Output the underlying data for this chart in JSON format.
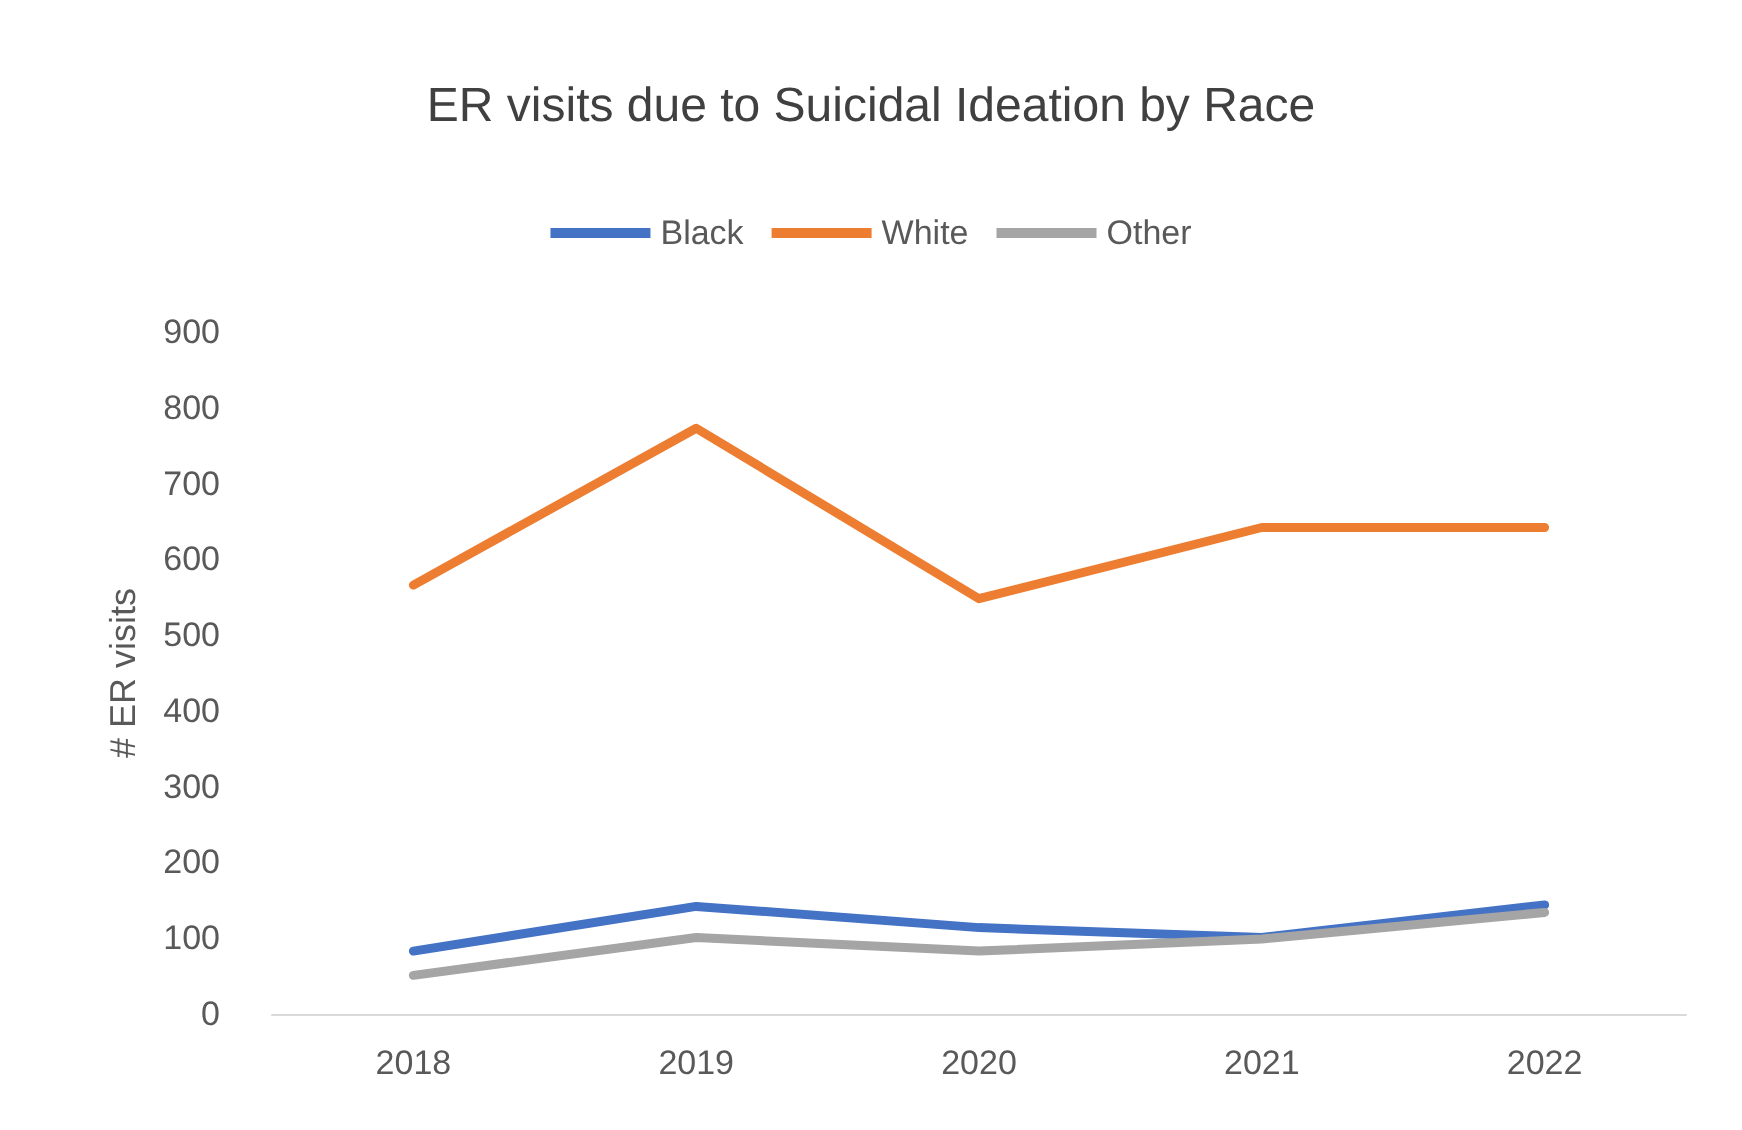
{
  "chart_data": {
    "type": "line",
    "title": "ER visits due to Suicidal Ideation by Race",
    "ylabel": "# ER visits",
    "categories": [
      "2018",
      "2019",
      "2020",
      "2021",
      "2022"
    ],
    "series": [
      {
        "name": "Black",
        "color": "#4472c4",
        "values": [
          83,
          142,
          114,
          101,
          144
        ]
      },
      {
        "name": "White",
        "color": "#ed7d31",
        "values": [
          566,
          773,
          548,
          642,
          642
        ]
      },
      {
        "name": "Other",
        "color": "#a5a5a5",
        "values": [
          51,
          101,
          83,
          99,
          134
        ]
      }
    ],
    "ylim": [
      0,
      900
    ],
    "yticks": [
      0,
      100,
      200,
      300,
      400,
      500,
      600,
      700,
      800,
      900
    ],
    "grid": false,
    "legend": "top",
    "marker": "none",
    "line_style": "solid"
  }
}
